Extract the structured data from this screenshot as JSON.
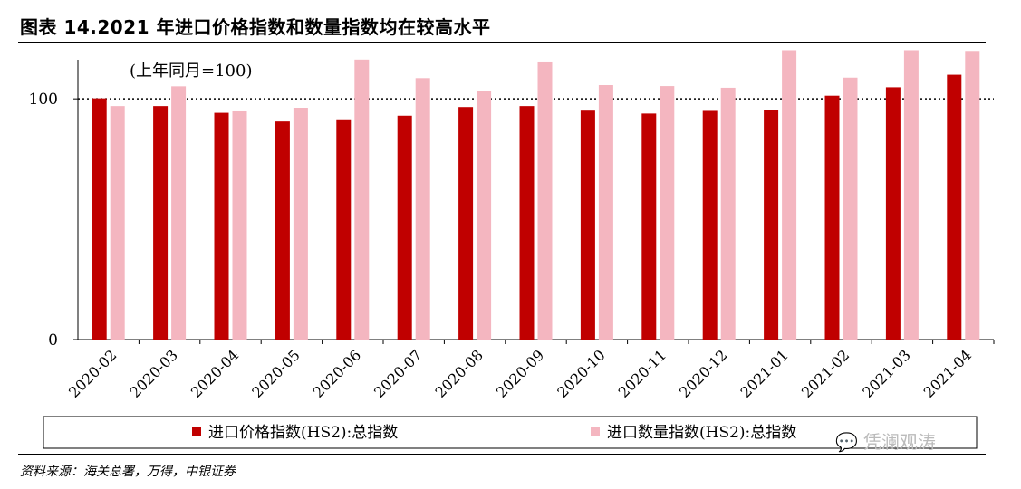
{
  "header": {
    "title": "图表 14.2021 年进口价格指数和数量指数均在较高水平"
  },
  "footer": {
    "source": "资料来源：海关总署，万得，中银证券",
    "watermark": "凭澜观涛"
  },
  "chart_data": {
    "type": "bar",
    "annotation": "(上年同月=100)",
    "categories": [
      "2020-02",
      "2020-03",
      "2020-04",
      "2020-05",
      "2020-06",
      "2020-07",
      "2020-08",
      "2020-09",
      "2020-10",
      "2020-11",
      "2020-12",
      "2021-01",
      "2021-02",
      "2021-03",
      "2021-04"
    ],
    "series": [
      {
        "name": "进口价格指数(HS2):总指数",
        "color": "#c00000",
        "values": [
          100.2,
          97.0,
          94.2,
          90.6,
          91.5,
          93.0,
          96.6,
          97.0,
          95.1,
          93.9,
          95.0,
          95.4,
          101.3,
          104.8,
          110.0
        ]
      },
      {
        "name": "进口数量指数(HS2):总指数",
        "color": "#f4b6c0",
        "values": [
          97.0,
          105.2,
          94.8,
          96.3,
          116.3,
          108.6,
          103.1,
          115.5,
          105.7,
          105.3,
          104.6,
          120.2,
          108.8,
          120.2,
          119.9
        ]
      }
    ],
    "y_ticks": [
      0,
      100
    ],
    "ylim": [
      0,
      120
    ],
    "reference_line": 100,
    "legend_position": "bottom"
  }
}
